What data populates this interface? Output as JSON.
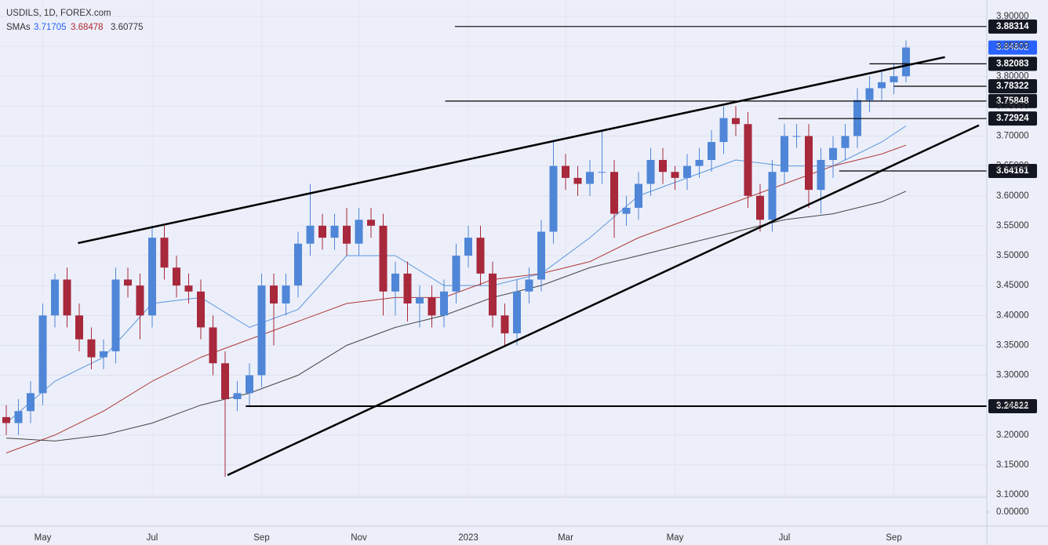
{
  "chart_data": {
    "type": "candlestick",
    "title": "USDILS, 1D, FOREX.com",
    "indicator_label": "SMAs",
    "categories": [
      null,
      null,
      null,
      "May",
      null,
      null,
      null,
      null,
      null,
      null,
      null,
      null,
      "Jul",
      null,
      null,
      null,
      null,
      null,
      null,
      null,
      null,
      "Sep",
      null,
      null,
      null,
      null,
      null,
      null,
      null,
      "Nov",
      null,
      null,
      null,
      null,
      null,
      null,
      null,
      null,
      "2023",
      null,
      null,
      null,
      null,
      null,
      null,
      null,
      "Mar",
      null,
      null,
      null,
      null,
      null,
      null,
      null,
      null,
      "May",
      null,
      null,
      null,
      null,
      null,
      null,
      null,
      null,
      "Jul",
      null,
      null,
      null,
      null,
      null,
      null,
      null,
      null,
      "Sep",
      null
    ],
    "open": [
      3.23,
      3.22,
      3.24,
      3.27,
      3.4,
      3.46,
      3.4,
      3.36,
      3.33,
      3.34,
      3.46,
      3.45,
      3.4,
      3.53,
      3.48,
      3.45,
      3.44,
      3.38,
      3.32,
      3.26,
      3.27,
      3.3,
      3.45,
      3.42,
      3.45,
      3.52,
      3.55,
      3.53,
      3.55,
      3.52,
      3.56,
      3.55,
      3.44,
      3.47,
      3.42,
      3.43,
      3.4,
      3.44,
      3.5,
      3.53,
      3.47,
      3.4,
      3.37,
      3.44,
      3.46,
      3.54,
      3.65,
      3.63,
      3.62,
      3.64,
      3.64,
      3.57,
      3.58,
      3.62,
      3.66,
      3.64,
      3.63,
      3.65,
      3.66,
      3.69,
      3.73,
      3.72,
      3.6,
      3.56,
      3.64,
      3.7,
      3.7,
      3.61,
      3.66,
      3.68,
      3.7,
      3.76,
      3.78,
      3.79,
      3.8
    ],
    "high": [
      3.25,
      3.26,
      3.29,
      3.42,
      3.47,
      3.48,
      3.42,
      3.38,
      3.36,
      3.48,
      3.48,
      3.47,
      3.55,
      3.55,
      3.5,
      3.47,
      3.46,
      3.4,
      3.34,
      3.29,
      3.32,
      3.47,
      3.47,
      3.47,
      3.54,
      3.62,
      3.57,
      3.57,
      3.58,
      3.58,
      3.58,
      3.57,
      3.49,
      3.49,
      3.45,
      3.45,
      3.46,
      3.52,
      3.55,
      3.55,
      3.49,
      3.42,
      3.46,
      3.48,
      3.56,
      3.69,
      3.67,
      3.65,
      3.66,
      3.71,
      3.66,
      3.6,
      3.64,
      3.68,
      3.68,
      3.65,
      3.67,
      3.68,
      3.71,
      3.75,
      3.75,
      3.74,
      3.62,
      3.66,
      3.72,
      3.72,
      3.72,
      3.68,
      3.7,
      3.72,
      3.78,
      3.8,
      3.81,
      3.82,
      3.86
    ],
    "low": [
      3.2,
      3.2,
      3.22,
      3.25,
      3.38,
      3.38,
      3.34,
      3.31,
      3.31,
      3.32,
      3.43,
      3.36,
      3.38,
      3.46,
      3.43,
      3.42,
      3.36,
      3.3,
      3.13,
      3.24,
      3.25,
      3.28,
      3.35,
      3.4,
      3.43,
      3.5,
      3.51,
      3.51,
      3.5,
      3.5,
      3.53,
      3.4,
      3.4,
      3.39,
      3.38,
      3.38,
      3.38,
      3.42,
      3.48,
      3.45,
      3.38,
      3.35,
      3.35,
      3.42,
      3.44,
      3.52,
      3.61,
      3.6,
      3.6,
      3.62,
      3.53,
      3.55,
      3.56,
      3.6,
      3.62,
      3.61,
      3.61,
      3.63,
      3.64,
      3.67,
      3.7,
      3.58,
      3.54,
      3.54,
      3.62,
      3.68,
      3.58,
      3.57,
      3.63,
      3.66,
      3.68,
      3.74,
      3.76,
      3.77,
      3.79
    ],
    "close": [
      3.22,
      3.24,
      3.27,
      3.4,
      3.46,
      3.4,
      3.36,
      3.33,
      3.34,
      3.46,
      3.45,
      3.4,
      3.53,
      3.48,
      3.45,
      3.44,
      3.38,
      3.32,
      3.26,
      3.27,
      3.3,
      3.45,
      3.42,
      3.45,
      3.52,
      3.55,
      3.53,
      3.55,
      3.52,
      3.56,
      3.55,
      3.44,
      3.47,
      3.42,
      3.43,
      3.4,
      3.44,
      3.5,
      3.53,
      3.47,
      3.4,
      3.37,
      3.44,
      3.46,
      3.54,
      3.65,
      3.63,
      3.62,
      3.64,
      3.64,
      3.57,
      3.58,
      3.62,
      3.66,
      3.64,
      3.63,
      3.65,
      3.66,
      3.69,
      3.73,
      3.72,
      3.6,
      3.56,
      3.64,
      3.7,
      3.7,
      3.61,
      3.66,
      3.68,
      3.7,
      3.76,
      3.78,
      3.79,
      3.8,
      3.84802
    ],
    "up_color": "#4f86d8",
    "down_color": "#a8283c",
    "sma": [
      {
        "color": "#5b95dc",
        "x": [
          0,
          4,
          8,
          12,
          16,
          20,
          24,
          28,
          32,
          36,
          40,
          44,
          48,
          52,
          56,
          60,
          64,
          68,
          72,
          74
        ],
        "values": [
          3.22,
          3.29,
          3.33,
          3.42,
          3.43,
          3.38,
          3.41,
          3.5,
          3.5,
          3.45,
          3.45,
          3.47,
          3.53,
          3.6,
          3.63,
          3.66,
          3.65,
          3.65,
          3.69,
          3.71705
        ]
      },
      {
        "color": "#b03a3a",
        "x": [
          0,
          4,
          8,
          12,
          16,
          20,
          24,
          28,
          32,
          36,
          40,
          44,
          48,
          52,
          56,
          60,
          64,
          68,
          72,
          74
        ],
        "values": [
          3.17,
          3.2,
          3.24,
          3.29,
          3.33,
          3.36,
          3.39,
          3.42,
          3.43,
          3.43,
          3.46,
          3.47,
          3.49,
          3.53,
          3.56,
          3.59,
          3.62,
          3.65,
          3.67,
          3.68478
        ]
      },
      {
        "color": "#444444",
        "x": [
          0,
          4,
          8,
          12,
          16,
          20,
          24,
          28,
          32,
          36,
          40,
          44,
          48,
          52,
          56,
          60,
          64,
          68,
          72,
          74
        ],
        "values": [
          3.195,
          3.19,
          3.2,
          3.22,
          3.25,
          3.27,
          3.3,
          3.35,
          3.38,
          3.4,
          3.43,
          3.45,
          3.48,
          3.5,
          3.52,
          3.54,
          3.56,
          3.57,
          3.59,
          3.60775
        ]
      }
    ],
    "hlines": [
      {
        "level": 3.88314,
        "x0": 36.9
      },
      {
        "level": 3.82083,
        "x0": 71
      },
      {
        "level": 3.78322,
        "x0": 73
      },
      {
        "level": 3.75848,
        "x0": 36.1
      },
      {
        "level": 3.72924,
        "x0": 63.5
      },
      {
        "level": 3.64161,
        "x0": 68.5
      },
      {
        "level": 3.24822,
        "x0": 19.7
      }
    ],
    "trendlines": [
      {
        "x": [
          5.9,
          77.2
        ],
        "y": [
          3.521,
          3.832
        ]
      },
      {
        "x": [
          18.2,
          80
        ],
        "y": [
          3.133,
          3.718
        ]
      }
    ],
    "ylim": [
      3.0974,
      3.9275
    ],
    "yticks": [
      {
        "value": 3.9,
        "label": "3.90000"
      },
      {
        "value": 3.85,
        "label": "3.85000"
      },
      {
        "value": 3.8,
        "label": "3.80000"
      },
      {
        "value": 3.75,
        "label": "3.75000"
      },
      {
        "value": 3.7,
        "label": "3.70000"
      },
      {
        "value": 3.65,
        "label": "3.65000"
      },
      {
        "value": 3.6,
        "label": "3.60000"
      },
      {
        "value": 3.55,
        "label": "3.55000"
      },
      {
        "value": 3.5,
        "label": "3.50000"
      },
      {
        "value": 3.45,
        "label": "3.45000"
      },
      {
        "value": 3.4,
        "label": "3.40000"
      },
      {
        "value": 3.35,
        "label": "3.35000"
      },
      {
        "value": 3.3,
        "label": "3.30000"
      },
      {
        "value": 3.25,
        "label": "3.25000"
      },
      {
        "value": 3.2,
        "label": "3.20000"
      },
      {
        "value": 3.15,
        "label": "3.15000"
      },
      {
        "value": 3.1,
        "label": "3.10000"
      }
    ],
    "y2lim": [
      -0.04,
      0.04
    ],
    "y2ticks": [
      {
        "value": 0,
        "label": "0.00000"
      }
    ],
    "grid": true
  }
}
